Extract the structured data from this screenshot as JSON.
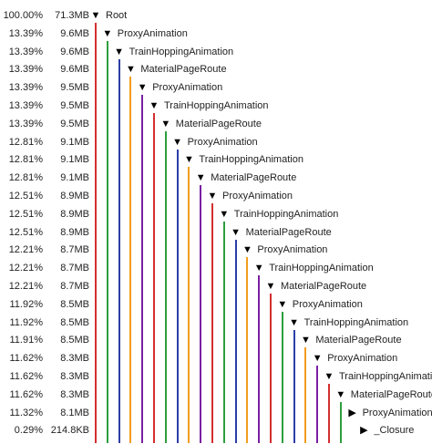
{
  "tree": {
    "rows": [
      {
        "pct": "100.00%",
        "size": "71.3MB",
        "label": "Root",
        "toggle": "▼",
        "color": "#d32f2f",
        "expanded": true
      },
      {
        "pct": "13.39%",
        "size": "9.6MB",
        "label": "ProxyAnimation",
        "toggle": "▼",
        "color": "#2e9e3e",
        "expanded": true
      },
      {
        "pct": "13.39%",
        "size": "9.6MB",
        "label": "TrainHoppingAnimation",
        "toggle": "▼",
        "color": "#2c3ea8",
        "expanded": true
      },
      {
        "pct": "13.39%",
        "size": "9.6MB",
        "label": "MaterialPageRoute",
        "toggle": "▼",
        "color": "#f29c1f",
        "expanded": true
      },
      {
        "pct": "13.39%",
        "size": "9.5MB",
        "label": "ProxyAnimation",
        "toggle": "▼",
        "color": "#7b1fa2",
        "expanded": true
      },
      {
        "pct": "13.39%",
        "size": "9.5MB",
        "label": "TrainHoppingAnimation",
        "toggle": "▼",
        "color": "#d32f2f",
        "expanded": true
      },
      {
        "pct": "13.39%",
        "size": "9.5MB",
        "label": "MaterialPageRoute",
        "toggle": "▼",
        "color": "#2e9e3e",
        "expanded": true
      },
      {
        "pct": "12.81%",
        "size": "9.1MB",
        "label": "ProxyAnimation",
        "toggle": "▼",
        "color": "#2c3ea8",
        "expanded": true
      },
      {
        "pct": "12.81%",
        "size": "9.1MB",
        "label": "TrainHoppingAnimation",
        "toggle": "▼",
        "color": "#f29c1f",
        "expanded": true
      },
      {
        "pct": "12.81%",
        "size": "9.1MB",
        "label": "MaterialPageRoute",
        "toggle": "▼",
        "color": "#7b1fa2",
        "expanded": true
      },
      {
        "pct": "12.51%",
        "size": "8.9MB",
        "label": "ProxyAnimation",
        "toggle": "▼",
        "color": "#d32f2f",
        "expanded": true
      },
      {
        "pct": "12.51%",
        "size": "8.9MB",
        "label": "TrainHoppingAnimation",
        "toggle": "▼",
        "color": "#2e9e3e",
        "expanded": true
      },
      {
        "pct": "12.51%",
        "size": "8.9MB",
        "label": "MaterialPageRoute",
        "toggle": "▼",
        "color": "#2c3ea8",
        "expanded": true
      },
      {
        "pct": "12.21%",
        "size": "8.7MB",
        "label": "ProxyAnimation",
        "toggle": "▼",
        "color": "#f29c1f",
        "expanded": true
      },
      {
        "pct": "12.21%",
        "size": "8.7MB",
        "label": "TrainHoppingAnimation",
        "toggle": "▼",
        "color": "#7b1fa2",
        "expanded": true
      },
      {
        "pct": "12.21%",
        "size": "8.7MB",
        "label": "MaterialPageRoute",
        "toggle": "▼",
        "color": "#d32f2f",
        "expanded": true
      },
      {
        "pct": "11.92%",
        "size": "8.5MB",
        "label": "ProxyAnimation",
        "toggle": "▼",
        "color": "#2e9e3e",
        "expanded": true
      },
      {
        "pct": "11.92%",
        "size": "8.5MB",
        "label": "TrainHoppingAnimation",
        "toggle": "▼",
        "color": "#2c3ea8",
        "expanded": true
      },
      {
        "pct": "11.91%",
        "size": "8.5MB",
        "label": "MaterialPageRoute",
        "toggle": "▼",
        "color": "#f29c1f",
        "expanded": true
      },
      {
        "pct": "11.62%",
        "size": "8.3MB",
        "label": "ProxyAnimation",
        "toggle": "▼",
        "color": "#7b1fa2",
        "expanded": true
      },
      {
        "pct": "11.62%",
        "size": "8.3MB",
        "label": "TrainHoppingAnimation",
        "toggle": "▼",
        "color": "#d32f2f",
        "expanded": true
      },
      {
        "pct": "11.62%",
        "size": "8.3MB",
        "label": "MaterialPageRoute",
        "toggle": "▼",
        "color": "#2e9e3e",
        "expanded": true
      },
      {
        "pct": "11.32%",
        "size": "8.1MB",
        "label": "ProxyAnimation",
        "toggle": "▶",
        "color": "#2c3ea8",
        "expanded": false
      },
      {
        "pct": "0.29%",
        "size": "214.8KB",
        "label": "_Closure",
        "toggle": "▶",
        "color": "#f29c1f",
        "expanded": false
      }
    ]
  }
}
